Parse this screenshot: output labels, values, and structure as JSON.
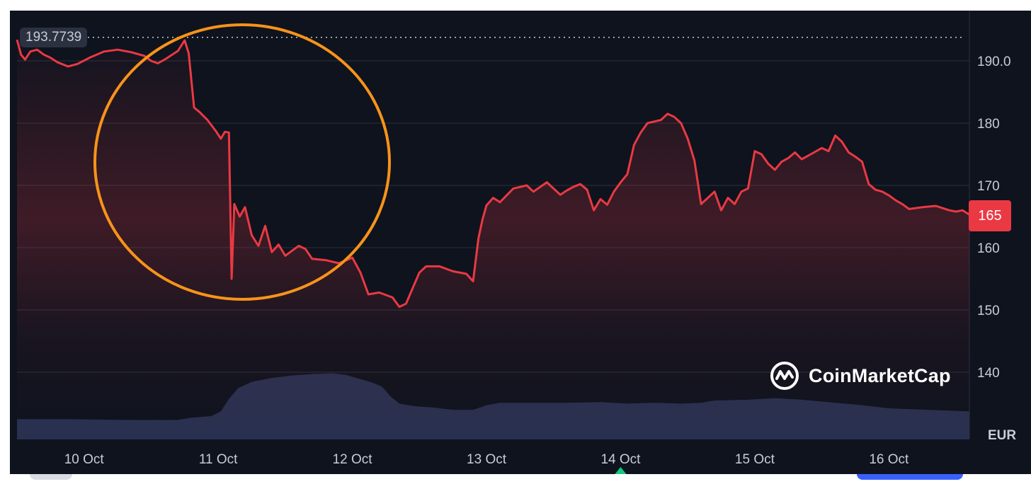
{
  "chart_data": {
    "type": "line",
    "currency_label": "EUR",
    "current_price_label": "165",
    "max_price_label": "193.7739",
    "y_ticks": [
      140,
      150,
      160,
      170,
      180,
      190
    ],
    "y_tick_labels": [
      "140",
      "150",
      "160",
      "170",
      "180",
      "190.0"
    ],
    "ylim": [
      136,
      194.5
    ],
    "x_tick_labels": [
      "10 Oct",
      "11 Oct",
      "12 Oct",
      "13 Oct",
      "14 Oct",
      "15 Oct",
      "16 Oct"
    ],
    "x_tick_positions": [
      0.5,
      1.5,
      2.5,
      3.5,
      4.5,
      5.5,
      6.5
    ],
    "xlim": [
      0.0,
      7.1
    ],
    "grid": true,
    "series": [
      {
        "role": "price",
        "color": "#ea3943",
        "points": [
          [
            0.0,
            193.4
          ],
          [
            0.03,
            191.0
          ],
          [
            0.06,
            190.2
          ],
          [
            0.1,
            191.5
          ],
          [
            0.15,
            191.8
          ],
          [
            0.2,
            191.0
          ],
          [
            0.25,
            190.5
          ],
          [
            0.3,
            189.8
          ],
          [
            0.38,
            189.1
          ],
          [
            0.45,
            189.5
          ],
          [
            0.55,
            190.6
          ],
          [
            0.65,
            191.5
          ],
          [
            0.75,
            191.8
          ],
          [
            0.85,
            191.4
          ],
          [
            0.95,
            190.8
          ],
          [
            1.0,
            190.0
          ],
          [
            1.05,
            189.6
          ],
          [
            1.1,
            190.2
          ],
          [
            1.15,
            190.9
          ],
          [
            1.2,
            191.6
          ],
          [
            1.25,
            193.3
          ],
          [
            1.28,
            191.2
          ],
          [
            1.32,
            182.5
          ],
          [
            1.36,
            181.8
          ],
          [
            1.42,
            180.5
          ],
          [
            1.48,
            178.8
          ],
          [
            1.52,
            177.5
          ],
          [
            1.55,
            178.6
          ],
          [
            1.58,
            178.5
          ],
          [
            1.6,
            155.0
          ],
          [
            1.62,
            167.0
          ],
          [
            1.66,
            165.0
          ],
          [
            1.7,
            166.5
          ],
          [
            1.75,
            162.0
          ],
          [
            1.8,
            160.3
          ],
          [
            1.85,
            163.5
          ],
          [
            1.9,
            159.3
          ],
          [
            1.95,
            160.5
          ],
          [
            2.0,
            158.7
          ],
          [
            2.05,
            159.5
          ],
          [
            2.1,
            160.3
          ],
          [
            2.15,
            159.8
          ],
          [
            2.2,
            158.2
          ],
          [
            2.3,
            158.0
          ],
          [
            2.4,
            157.5
          ],
          [
            2.5,
            158.4
          ],
          [
            2.56,
            156.0
          ],
          [
            2.62,
            152.5
          ],
          [
            2.7,
            152.8
          ],
          [
            2.8,
            152.0
          ],
          [
            2.85,
            150.5
          ],
          [
            2.9,
            151.0
          ],
          [
            2.95,
            153.5
          ],
          [
            3.0,
            156.0
          ],
          [
            3.05,
            157.0
          ],
          [
            3.15,
            157.0
          ],
          [
            3.25,
            156.2
          ],
          [
            3.35,
            155.8
          ],
          [
            3.4,
            154.6
          ],
          [
            3.44,
            161.5
          ],
          [
            3.47,
            164.5
          ],
          [
            3.5,
            166.8
          ],
          [
            3.55,
            168.0
          ],
          [
            3.6,
            167.3
          ],
          [
            3.7,
            169.5
          ],
          [
            3.8,
            170.0
          ],
          [
            3.85,
            169.0
          ],
          [
            3.95,
            170.5
          ],
          [
            4.05,
            168.5
          ],
          [
            4.1,
            169.2
          ],
          [
            4.15,
            169.8
          ],
          [
            4.2,
            170.2
          ],
          [
            4.25,
            169.3
          ],
          [
            4.3,
            166.0
          ],
          [
            4.35,
            167.8
          ],
          [
            4.4,
            166.9
          ],
          [
            4.45,
            169.0
          ],
          [
            4.5,
            170.5
          ],
          [
            4.55,
            171.8
          ],
          [
            4.6,
            176.5
          ],
          [
            4.65,
            178.5
          ],
          [
            4.7,
            180.0
          ],
          [
            4.8,
            180.5
          ],
          [
            4.85,
            181.5
          ],
          [
            4.9,
            181.0
          ],
          [
            4.95,
            180.0
          ],
          [
            5.0,
            177.5
          ],
          [
            5.05,
            174.0
          ],
          [
            5.1,
            167.0
          ],
          [
            5.15,
            168.0
          ],
          [
            5.2,
            169.0
          ],
          [
            5.25,
            166.0
          ],
          [
            5.3,
            168.0
          ],
          [
            5.35,
            167.0
          ],
          [
            5.4,
            169.0
          ],
          [
            5.45,
            169.5
          ],
          [
            5.5,
            175.5
          ],
          [
            5.55,
            175.0
          ],
          [
            5.6,
            173.5
          ],
          [
            5.65,
            172.5
          ],
          [
            5.7,
            173.8
          ],
          [
            5.75,
            174.4
          ],
          [
            5.8,
            175.3
          ],
          [
            5.85,
            174.2
          ],
          [
            5.9,
            174.8
          ],
          [
            5.95,
            175.4
          ],
          [
            6.0,
            176.0
          ],
          [
            6.05,
            175.5
          ],
          [
            6.1,
            178.0
          ],
          [
            6.15,
            177.0
          ],
          [
            6.2,
            175.3
          ],
          [
            6.25,
            174.6
          ],
          [
            6.3,
            173.8
          ],
          [
            6.35,
            170.2
          ],
          [
            6.4,
            169.3
          ],
          [
            6.45,
            169.0
          ],
          [
            6.5,
            168.4
          ],
          [
            6.55,
            167.6
          ],
          [
            6.6,
            167.0
          ],
          [
            6.65,
            166.2
          ],
          [
            6.75,
            166.5
          ],
          [
            6.85,
            166.7
          ],
          [
            6.95,
            166.0
          ],
          [
            7.0,
            165.8
          ],
          [
            7.05,
            166.0
          ],
          [
            7.1,
            165.3
          ]
        ]
      },
      {
        "role": "volume",
        "color": "#2b3252",
        "values_relative": [
          [
            0.0,
            0.26
          ],
          [
            0.4,
            0.26
          ],
          [
            0.8,
            0.25
          ],
          [
            1.0,
            0.25
          ],
          [
            1.2,
            0.25
          ],
          [
            1.3,
            0.28
          ],
          [
            1.45,
            0.3
          ],
          [
            1.52,
            0.36
          ],
          [
            1.58,
            0.52
          ],
          [
            1.65,
            0.66
          ],
          [
            1.75,
            0.74
          ],
          [
            1.9,
            0.79
          ],
          [
            2.05,
            0.82
          ],
          [
            2.2,
            0.84
          ],
          [
            2.35,
            0.85
          ],
          [
            2.45,
            0.83
          ],
          [
            2.55,
            0.78
          ],
          [
            2.65,
            0.73
          ],
          [
            2.72,
            0.68
          ],
          [
            2.78,
            0.56
          ],
          [
            2.85,
            0.46
          ],
          [
            2.95,
            0.43
          ],
          [
            3.1,
            0.41
          ],
          [
            3.25,
            0.38
          ],
          [
            3.4,
            0.38
          ],
          [
            3.5,
            0.44
          ],
          [
            3.6,
            0.47
          ],
          [
            3.8,
            0.47
          ],
          [
            4.1,
            0.47
          ],
          [
            4.35,
            0.48
          ],
          [
            4.55,
            0.46
          ],
          [
            4.75,
            0.47
          ],
          [
            4.95,
            0.46
          ],
          [
            5.1,
            0.47
          ],
          [
            5.2,
            0.5
          ],
          [
            5.45,
            0.51
          ],
          [
            5.65,
            0.53
          ],
          [
            5.85,
            0.51
          ],
          [
            6.1,
            0.47
          ],
          [
            6.3,
            0.44
          ],
          [
            6.5,
            0.4
          ],
          [
            6.8,
            0.38
          ],
          [
            7.1,
            0.36
          ]
        ]
      }
    ],
    "annotation": {
      "shape": "ellipse",
      "color": "#f7931a"
    }
  },
  "watermark": {
    "brand": "CoinMarketCap"
  },
  "colors": {
    "background": "#0e131e",
    "grid": "#2a303e",
    "line": "#ea3943",
    "badge_bg": "#ea3943",
    "accent_green": "#16c784",
    "accent_blue": "#3861fb"
  }
}
